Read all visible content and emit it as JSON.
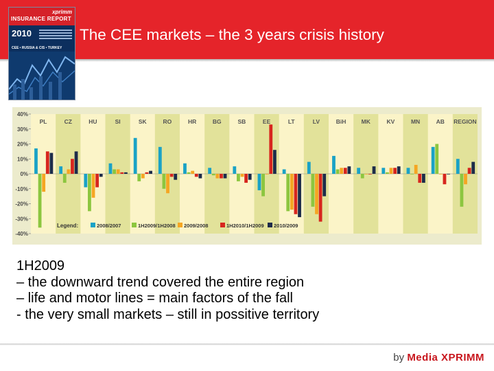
{
  "header": {
    "title": "The CEE markets – the 3 years crisis history",
    "color": "#e5242a"
  },
  "cover": {
    "brand": "xprimm",
    "title": "INSURANCE REPORT",
    "year": "2010",
    "subtitle": "CEE • RUSSIA & CIS • TURKEY"
  },
  "body": {
    "heading": "1H2009",
    "lines": [
      "– the downward trend covered the entire region",
      "– life and motor lines = main factors of the fall",
      "- the very small markets – still in possitive territory"
    ]
  },
  "footer": {
    "by": "by",
    "brand": "Media XPRIMM"
  },
  "chart_data": {
    "type": "bar",
    "categories": [
      "PL",
      "CZ",
      "HU",
      "SI",
      "SK",
      "RO",
      "HR",
      "BG",
      "SB",
      "EE",
      "LT",
      "LV",
      "BiH",
      "MK",
      "KV",
      "MN",
      "AB",
      "REGION"
    ],
    "ylim": [
      -40,
      40
    ],
    "yticks": [
      40,
      30,
      20,
      10,
      0,
      -10,
      -20,
      -30,
      -40
    ],
    "ytick_labels": [
      "40%",
      "30%",
      "20%",
      "10%",
      "0%",
      "-10%",
      "-20%",
      "-30%",
      "-40%"
    ],
    "legend_label": "Legend:",
    "legend_placement": "bottom-left",
    "colors": {
      "plot_bg": "#fbf4c8",
      "band_alt": "#e2e29a",
      "frame_bg": "#ecebcc"
    },
    "series": [
      {
        "name": "2008/2007",
        "color": "#1aa2c6",
        "values": [
          17,
          5,
          -9,
          7,
          24,
          18,
          7,
          4,
          5,
          -11,
          3,
          8,
          12,
          4,
          4,
          4,
          18,
          10
        ]
      },
      {
        "name": "1H2009/1H2008",
        "color": "#8cc63f",
        "values": [
          -36,
          -6,
          -25,
          3,
          -5,
          -10,
          1,
          -1,
          -5,
          -15,
          -25,
          -22,
          3,
          -3,
          1,
          0,
          20,
          -22
        ]
      },
      {
        "name": "2009/2008",
        "color": "#f5a623",
        "values": [
          -12,
          3,
          -16,
          3,
          -3,
          -13,
          2,
          -3,
          -2,
          0,
          -24,
          -27,
          4,
          0,
          4,
          6,
          0,
          -7
        ]
      },
      {
        "name": "1H2010/1H2009",
        "color": "#d7261e",
        "values": [
          15,
          10,
          -9,
          1,
          1,
          -2,
          -2,
          -3,
          -6,
          33,
          -27,
          -32,
          4,
          0,
          4,
          -6,
          -7,
          4
        ]
      },
      {
        "name": "2010/2009",
        "color": "#1d2c4a",
        "values": [
          14,
          15,
          -2,
          1,
          2,
          -4,
          -3,
          -3,
          -4,
          16,
          -29,
          -15,
          5,
          5,
          5,
          -6,
          0,
          8
        ]
      }
    ]
  }
}
